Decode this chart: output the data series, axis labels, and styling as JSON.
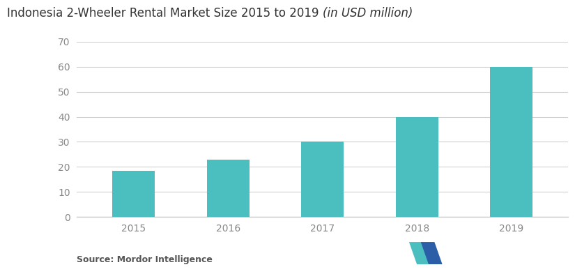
{
  "title_regular": "Indonesia 2-Wheeler Rental Market Size 2015 to 2019 ",
  "title_italic": "(in USD million)",
  "categories": [
    "2015",
    "2016",
    "2017",
    "2018",
    "2019"
  ],
  "values": [
    18.5,
    23,
    30,
    40,
    60
  ],
  "bar_color": "#4BBFBF",
  "background_color": "#ffffff",
  "ylim": [
    0,
    70
  ],
  "yticks": [
    0,
    10,
    20,
    30,
    40,
    50,
    60,
    70
  ],
  "grid_color": "#d0d0d0",
  "source_text": "Source: Mordor Intelligence",
  "source_fontsize": 9,
  "title_fontsize": 12,
  "tick_fontsize": 10,
  "tick_color": "#888888",
  "axis_color": "#cccccc",
  "logo_left_color": "#4BBFBF",
  "logo_right_color": "#2B5EA7"
}
